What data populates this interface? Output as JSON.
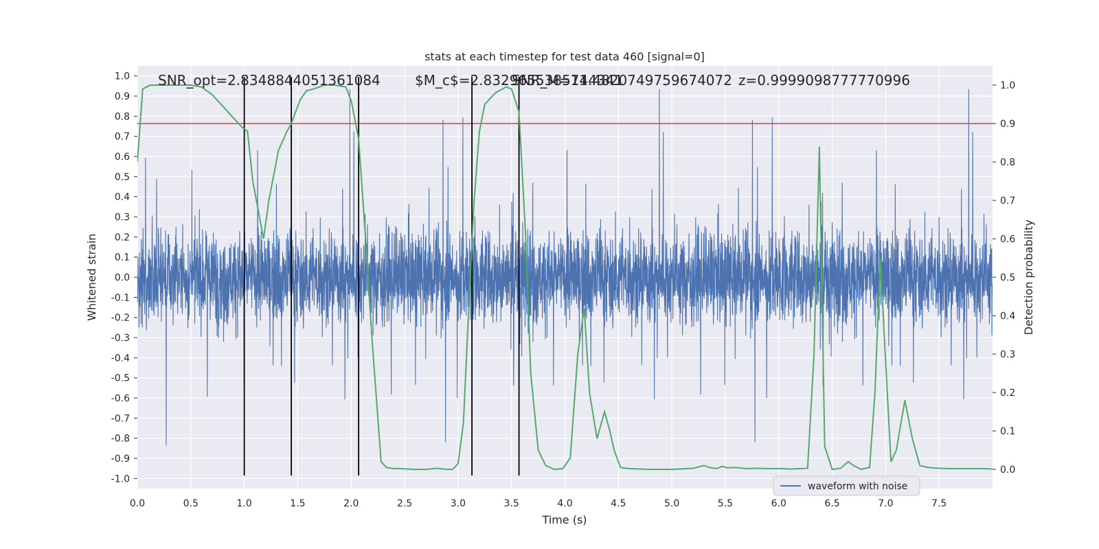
{
  "chart_data": {
    "type": "line",
    "title": "stats at each timestep for test data 460 [signal=0]",
    "xlabel": "Time (s)",
    "ylabel_left": "Whitened strain",
    "ylabel_right": "Detection probability",
    "xlim": [
      0.0,
      8.0
    ],
    "ylim_left": [
      -1.05,
      1.05
    ],
    "ylim_right": [
      -0.05,
      1.05
    ],
    "xticks": [
      "0.0",
      "0.5",
      "1.0",
      "1.5",
      "2.0",
      "2.5",
      "3.0",
      "3.5",
      "4.0",
      "4.5",
      "5.0",
      "5.5",
      "6.0",
      "6.5",
      "7.0",
      "7.5"
    ],
    "yticks_left": [
      "1.0",
      "0.9",
      "0.8",
      "0.7",
      "0.6",
      "0.5",
      "0.4",
      "0.3",
      "0.2",
      "0.1",
      "0.0",
      "-0.1",
      "-0.2",
      "-0.3",
      "-0.4",
      "-0.5",
      "-0.6",
      "-0.7",
      "-0.8",
      "-0.9",
      "-1.0"
    ],
    "yticks_right": [
      "1.0",
      "0.9",
      "0.8",
      "0.7",
      "0.6",
      "0.5",
      "0.4",
      "0.3",
      "0.2",
      "0.1",
      "0.0"
    ],
    "grid": true,
    "legend": {
      "position": "lower-right",
      "entries": [
        "waveform with noise"
      ]
    },
    "annotations": [
      "SNR_opt=2.8348844051361084",
      "$M_c$=2.8329655385744341",
      "SNR_M=11.4820749759674072",
      "z=0.9999098777770996"
    ],
    "threshold": {
      "value": 0.9,
      "axis": "right",
      "color": "#c44e52"
    },
    "vertical_lines": [
      1.0,
      1.44,
      2.07,
      3.13,
      3.57
    ],
    "colors": {
      "strain": "#4c72b0",
      "probability": "#55a868",
      "threshold": "#c44e52",
      "vline": "#000000",
      "background": "#eaeaf2"
    },
    "strain_series": {
      "name": "waveform with noise",
      "sample_rate": 512,
      "duration": 8.0,
      "typical_upper": 0.42,
      "typical_lower": -0.36,
      "description_note": ""
    },
    "probability_series": {
      "x": [
        0.0,
        0.05,
        0.12,
        0.2,
        0.3,
        0.4,
        0.5,
        0.6,
        0.7,
        0.8,
        0.88,
        0.98,
        1.03,
        1.08,
        1.18,
        1.23,
        1.32,
        1.4,
        1.44,
        1.52,
        1.58,
        1.65,
        1.75,
        1.85,
        1.95,
        2.0,
        2.07,
        2.13,
        2.2,
        2.28,
        2.33,
        2.4,
        2.45,
        2.6,
        2.7,
        2.8,
        2.9,
        2.95,
        3.0,
        3.05,
        3.1,
        3.15,
        3.2,
        3.25,
        3.35,
        3.45,
        3.5,
        3.57,
        3.63,
        3.68,
        3.75,
        3.82,
        3.9,
        3.98,
        4.05,
        4.12,
        4.18,
        4.23,
        4.3,
        4.37,
        4.42,
        4.46,
        4.52,
        4.6,
        4.8,
        5.0,
        5.2,
        5.3,
        5.35,
        5.42,
        5.47,
        5.52,
        5.6,
        5.7,
        5.8,
        5.9,
        6.05,
        6.1,
        6.2,
        6.27,
        6.33,
        6.38,
        6.43,
        6.5,
        6.58,
        6.65,
        6.7,
        6.77,
        6.85,
        6.9,
        6.95,
        7.0,
        7.05,
        7.1,
        7.18,
        7.25,
        7.32,
        7.4,
        7.5,
        7.6,
        7.7,
        7.8,
        7.9,
        8.0
      ],
      "y": [
        0.8,
        0.99,
        1.0,
        1.0,
        1.0,
        1.0,
        1.0,
        0.995,
        0.975,
        0.945,
        0.92,
        0.89,
        0.88,
        0.75,
        0.6,
        0.7,
        0.83,
        0.88,
        0.9,
        0.96,
        0.985,
        0.99,
        1.0,
        1.0,
        0.995,
        0.96,
        0.86,
        0.62,
        0.32,
        0.02,
        0.005,
        0.002,
        0.002,
        0.0,
        0.0,
        0.003,
        0.0,
        0.0,
        0.015,
        0.12,
        0.42,
        0.7,
        0.88,
        0.95,
        0.98,
        0.995,
        0.99,
        0.93,
        0.62,
        0.25,
        0.05,
        0.01,
        0.0,
        0.002,
        0.03,
        0.3,
        0.42,
        0.2,
        0.08,
        0.15,
        0.1,
        0.05,
        0.005,
        0.002,
        0.0,
        0.0,
        0.003,
        0.01,
        0.005,
        0.002,
        0.008,
        0.004,
        0.005,
        0.002,
        0.003,
        0.002,
        0.002,
        0.001,
        0.002,
        0.003,
        0.3,
        0.84,
        0.06,
        0.0,
        0.003,
        0.02,
        0.01,
        0.0,
        0.005,
        0.2,
        0.55,
        0.28,
        0.02,
        0.05,
        0.18,
        0.08,
        0.01,
        0.005,
        0.003,
        0.002,
        0.002,
        0.002,
        0.002,
        0.001
      ]
    }
  }
}
